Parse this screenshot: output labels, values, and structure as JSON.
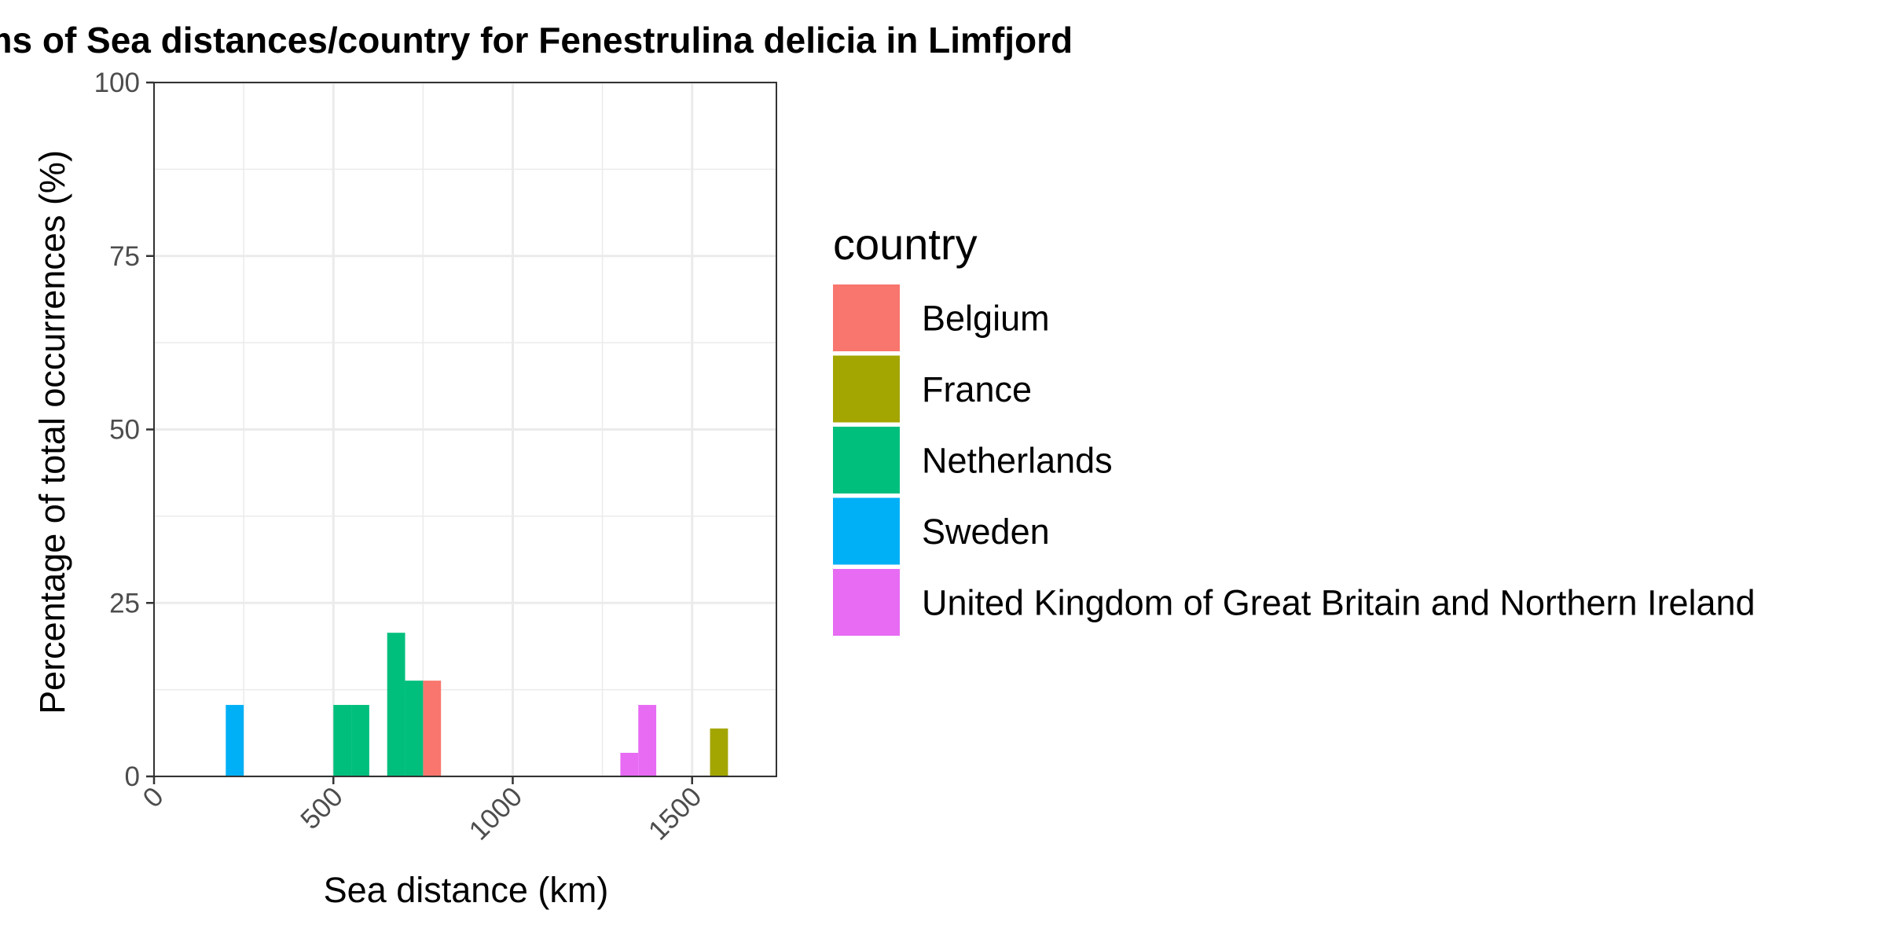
{
  "chart_data": {
    "type": "bar",
    "title": "Histograms of Sea distances/country for Fenestrulina delicia in Limfjord",
    "xlabel": "Sea distance (km)",
    "ylabel": "Percentage of total occurrences (%)",
    "xlim": [
      0,
      1735
    ],
    "ylim": [
      0,
      100
    ],
    "x_ticks": [
      "0",
      "500",
      "1000",
      "1500"
    ],
    "x_tick_values": [
      0,
      500,
      1000,
      1500
    ],
    "y_ticks": [
      "0",
      "25",
      "50",
      "75",
      "100"
    ],
    "y_tick_values": [
      0,
      25,
      50,
      75,
      100
    ],
    "grid": true,
    "legend": {
      "title": "country",
      "position": "right"
    },
    "series": [
      {
        "name": "Belgium",
        "color": "#F8766D",
        "bins": [
          {
            "x0": 750,
            "x1": 800,
            "value": 13.8
          }
        ]
      },
      {
        "name": "France",
        "color": "#A3A500",
        "bins": [
          {
            "x0": 1550,
            "x1": 1600,
            "value": 6.9
          }
        ]
      },
      {
        "name": "Netherlands",
        "color": "#00BF7D",
        "bins": [
          {
            "x0": 500,
            "x1": 550,
            "value": 10.3
          },
          {
            "x0": 550,
            "x1": 600,
            "value": 10.3
          },
          {
            "x0": 650,
            "x1": 700,
            "value": 20.7
          },
          {
            "x0": 700,
            "x1": 750,
            "value": 13.8
          }
        ]
      },
      {
        "name": "Sweden",
        "color": "#00B0F6",
        "bins": [
          {
            "x0": 200,
            "x1": 250,
            "value": 10.3
          }
        ]
      },
      {
        "name": "United Kingdom of Great Britain and Northern Ireland",
        "color": "#E76BF3",
        "bins": [
          {
            "x0": 1300,
            "x1": 1350,
            "value": 3.4
          },
          {
            "x0": 1350,
            "x1": 1400,
            "value": 10.3
          }
        ]
      }
    ]
  }
}
